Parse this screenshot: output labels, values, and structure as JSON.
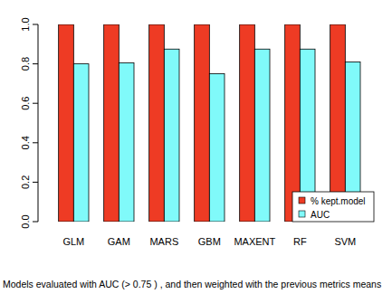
{
  "chart_data": {
    "type": "bar",
    "subtitle": "Models evaluated with AUC (> 0.75 ) , and then weighted with the previous metrics means",
    "categories": [
      "GLM",
      "GAM",
      "MARS",
      "GBM",
      "MAXENT",
      "RF",
      "SVM"
    ],
    "series": [
      {
        "name": "% kept.model",
        "color": "#ee3b24",
        "values": [
          1,
          1,
          1,
          1,
          1,
          1,
          1
        ]
      },
      {
        "name": "AUC",
        "color": "#80fafa",
        "values": [
          0.8,
          0.805,
          0.875,
          0.75,
          0.875,
          0.875,
          0.81
        ]
      }
    ],
    "ylim": [
      0,
      1
    ],
    "yticks": [
      {
        "value": 0,
        "label": "0.0"
      },
      {
        "value": 0.2,
        "label": "0.2"
      },
      {
        "value": 0.4,
        "label": "0.4"
      },
      {
        "value": 0.6,
        "label": "0.6"
      },
      {
        "value": 0.8,
        "label": "0.8"
      },
      {
        "value": 1,
        "label": "1.0"
      }
    ],
    "legend": "bottomright"
  }
}
